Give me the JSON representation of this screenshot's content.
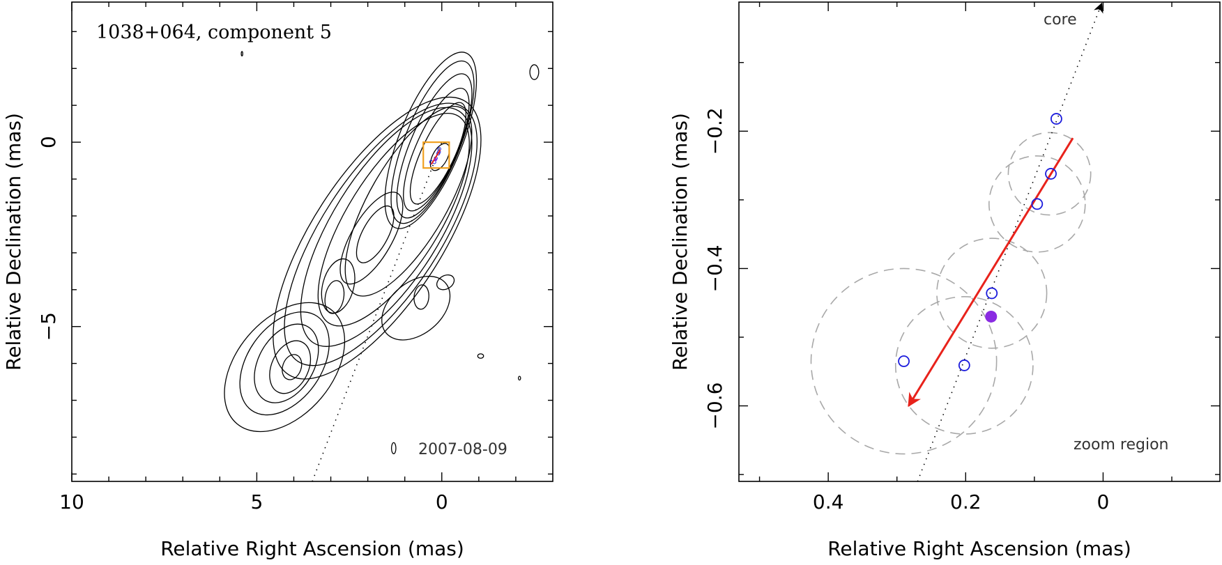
{
  "colors": {
    "contour": "#000000",
    "fit_arrow": "#e8221b",
    "epoch_point": "#1b1bdc",
    "mean_point": "#8a2be2",
    "uncertainty": "#a8a8a8",
    "zoom_box": "#f0a020"
  },
  "chart_data": [
    {
      "type": "contour",
      "title": "1038+064, component 5",
      "epoch_label": "2007-08-09",
      "xlabel": "Relative Right Ascension (mas)",
      "ylabel": "Relative Declination (mas)",
      "xlim": [
        10,
        -3
      ],
      "ylim": [
        -9.2,
        3.8
      ],
      "xticks": [
        10,
        5,
        0
      ],
      "yticks": [
        0,
        -5
      ],
      "x_minor": [
        9,
        8,
        7,
        6,
        4,
        3,
        2,
        1,
        -1,
        -2
      ],
      "y_minor": [
        3,
        2,
        1,
        -1,
        -2,
        -3,
        -4,
        -6,
        -7,
        -8,
        -9
      ],
      "zoom_box": {
        "ra": [
          0.5,
          -0.2
        ],
        "dec": [
          0.0,
          -0.7
        ]
      },
      "jet_axis": {
        "ra": [
          3.5,
          0.0
        ],
        "dec": [
          -9.2,
          0.0
        ]
      },
      "contours": [
        {
          "ra": 0.05,
          "dec": -0.4,
          "a": 0.4,
          "b": 0.2,
          "angle": 62
        },
        {
          "ra": 0.1,
          "dec": -0.3,
          "a": 1.5,
          "b": 0.45,
          "angle": 65
        },
        {
          "ra": 0.15,
          "dec": -0.2,
          "a": 1.8,
          "b": 0.55,
          "angle": 66
        },
        {
          "ra": 0.2,
          "dec": -0.1,
          "a": 2.1,
          "b": 0.65,
          "angle": 67
        },
        {
          "ra": 0.25,
          "dec": 0.0,
          "a": 2.35,
          "b": 0.75,
          "angle": 68
        },
        {
          "ra": 0.3,
          "dec": 0.05,
          "a": 2.55,
          "b": 0.85,
          "angle": 68
        },
        {
          "ra": 0.9,
          "dec": -1.6,
          "a": 2.9,
          "b": 1.05,
          "angle": 60
        },
        {
          "ra": 1.3,
          "dec": -2.1,
          "a": 3.3,
          "b": 1.25,
          "angle": 58
        },
        {
          "ra": 1.5,
          "dec": -2.3,
          "a": 3.7,
          "b": 1.45,
          "angle": 58
        },
        {
          "ra": 1.65,
          "dec": -2.5,
          "a": 4.1,
          "b": 1.6,
          "angle": 57
        },
        {
          "ra": 1.75,
          "dec": -2.6,
          "a": 4.4,
          "b": 1.75,
          "angle": 57
        },
        {
          "ra": 1.8,
          "dec": -2.5,
          "a": 0.85,
          "b": 0.35,
          "angle": 62
        },
        {
          "ra": 1.9,
          "dec": -2.6,
          "a": 1.4,
          "b": 0.55,
          "angle": 60
        },
        {
          "ra": 4.05,
          "dec": -6.1,
          "a": 0.35,
          "b": 0.25,
          "angle": 70
        },
        {
          "ra": 4.1,
          "dec": -6.1,
          "a": 0.75,
          "b": 0.5,
          "angle": 65
        },
        {
          "ra": 4.2,
          "dec": -6.0,
          "a": 1.15,
          "b": 0.75,
          "angle": 60
        },
        {
          "ra": 4.25,
          "dec": -6.0,
          "a": 1.55,
          "b": 1.0,
          "angle": 55
        },
        {
          "ra": 4.25,
          "dec": -6.1,
          "a": 2.0,
          "b": 1.3,
          "angle": 50
        },
        {
          "ra": 2.9,
          "dec": -4.2,
          "a": 0.45,
          "b": 0.25,
          "angle": 80
        },
        {
          "ra": 2.8,
          "dec": -3.9,
          "a": 0.75,
          "b": 0.42,
          "angle": 75
        },
        {
          "ra": 0.55,
          "dec": -4.2,
          "a": 0.33,
          "b": 0.2,
          "angle": 85
        },
        {
          "ra": 0.7,
          "dec": -4.5,
          "a": 1.05,
          "b": 0.7,
          "angle": 40
        },
        {
          "ra": -0.1,
          "dec": -3.8,
          "a": 0.25,
          "b": 0.18,
          "angle": 30
        },
        {
          "ra": -2.5,
          "dec": 1.9,
          "a": 0.2,
          "b": 0.12,
          "angle": 90
        },
        {
          "ra": 1.3,
          "dec": -8.3,
          "a": 0.15,
          "b": 0.06,
          "angle": 90
        },
        {
          "ra": -1.05,
          "dec": -5.8,
          "a": 0.08,
          "b": 0.06,
          "angle": 0
        },
        {
          "ra": -2.1,
          "dec": -6.4,
          "a": 0.05,
          "b": 0.03,
          "angle": 90
        },
        {
          "ra": 5.4,
          "dec": 2.4,
          "a": 0.06,
          "b": 0.02,
          "angle": 90
        }
      ]
    },
    {
      "type": "scatter",
      "note_label": "zoom region",
      "arrow_label": "core",
      "xlabel": "Relative Right Ascension (mas)",
      "ylabel": "Relative Declination (mas)",
      "xlim": [
        0.53,
        -0.17
      ],
      "ylim": [
        -0.71,
        -0.012
      ],
      "xticks": [
        0.4,
        0.2,
        0
      ],
      "yticks": [
        -0.2,
        -0.4,
        -0.6
      ],
      "x_minor": [
        0.5,
        0.3,
        0.1,
        -0.1
      ],
      "y_minor": [
        -0.1,
        -0.3,
        -0.5,
        -0.7
      ],
      "epoch_points": [
        {
          "ra": 0.068,
          "dec": -0.182
        },
        {
          "ra": 0.076,
          "dec": -0.262
        },
        {
          "ra": 0.096,
          "dec": -0.306
        },
        {
          "ra": 0.162,
          "dec": -0.436
        },
        {
          "ra": 0.202,
          "dec": -0.541
        },
        {
          "ra": 0.29,
          "dec": -0.535
        }
      ],
      "mean_point": {
        "ra": 0.163,
        "dec": -0.47
      },
      "uncertainty_circles": [
        {
          "ra": 0.078,
          "dec": -0.262,
          "r": 0.06
        },
        {
          "ra": 0.096,
          "dec": -0.306,
          "r": 0.07
        },
        {
          "ra": 0.162,
          "dec": -0.436,
          "r": 0.08
        },
        {
          "ra": 0.202,
          "dec": -0.541,
          "r": 0.1
        },
        {
          "ra": 0.29,
          "dec": -0.535,
          "r": 0.135
        }
      ],
      "fit_arrow": {
        "from": {
          "ra": 0.044,
          "dec": -0.21
        },
        "to": {
          "ra": 0.283,
          "dec": -0.6
        }
      },
      "core_direction": {
        "from": {
          "ra": 0.27,
          "dec": -0.71
        },
        "to": {
          "ra": 0.002,
          "dec": -0.014
        }
      }
    }
  ]
}
